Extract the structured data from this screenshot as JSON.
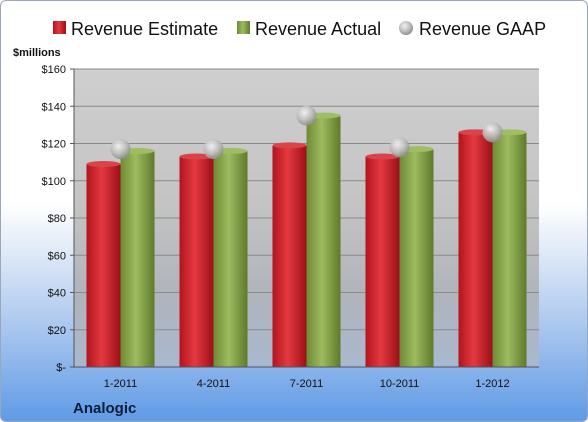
{
  "legend": {
    "estimate_label": "Revenue Estimate",
    "actual_label": "Revenue Actual",
    "gaap_label": "Revenue GAAP"
  },
  "unit_label": "$millions",
  "company": "Analogic",
  "colors": {
    "estimate": "#c9202a",
    "actual": "#7f9f45",
    "gaap": "#a6a6a6",
    "plot_bg": "#c8c8c8"
  },
  "chart_data": {
    "type": "bar",
    "categories": [
      "1-2011",
      "4-2011",
      "7-2011",
      "10-2011",
      "1-2012"
    ],
    "series": [
      {
        "name": "Revenue Estimate",
        "values": [
          109,
          113,
          119,
          113,
          126
        ]
      },
      {
        "name": "Revenue Actual",
        "values": [
          116,
          116,
          135,
          117,
          126
        ]
      },
      {
        "name": "Revenue GAAP",
        "values": [
          117,
          117,
          135,
          118,
          126
        ]
      }
    ],
    "ylim": [
      0,
      160
    ],
    "yticks": [
      0,
      20,
      40,
      60,
      80,
      100,
      120,
      140,
      160
    ],
    "ytick_labels": [
      "$-",
      "$20",
      "$40",
      "$60",
      "$80",
      "$100",
      "$120",
      "$140",
      "$160"
    ],
    "ylabel": "$millions",
    "legend": "top",
    "grid": true
  }
}
